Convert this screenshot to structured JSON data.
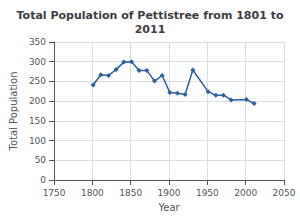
{
  "chart_data": {
    "type": "line",
    "title": "Total Population of Pettistree from 1801 to\n2011",
    "xlabel": "Year",
    "ylabel": "Total Population",
    "x": [
      1801,
      1811,
      1821,
      1831,
      1841,
      1851,
      1861,
      1871,
      1881,
      1891,
      1901,
      1911,
      1921,
      1931,
      1951,
      1961,
      1971,
      1981,
      2001,
      2011
    ],
    "values": [
      241,
      267,
      265,
      280,
      299,
      300,
      278,
      278,
      251,
      265,
      222,
      220,
      217,
      279,
      224,
      215,
      215,
      203,
      204,
      194
    ],
    "color": "#2B5F9E",
    "marker": "diamond",
    "xlim": [
      1750,
      2050
    ],
    "ylim": [
      0,
      350
    ],
    "xticks": [
      1750,
      1800,
      1850,
      1900,
      1950,
      2000,
      2050
    ],
    "yticks": [
      0,
      50,
      100,
      150,
      200,
      250,
      300,
      350
    ],
    "grid": true
  }
}
